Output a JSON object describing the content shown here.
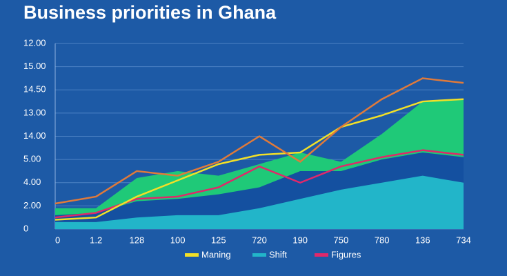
{
  "chart_data": {
    "type": "area",
    "title": "Business priorities in Ghana",
    "categories": [
      "0",
      "1.2",
      "128",
      "100",
      "125",
      "720",
      "190",
      "750",
      "780",
      "136",
      "734"
    ],
    "ylim": [
      0,
      8
    ],
    "yticks": [
      0,
      {
        "value": 1,
        "label": "2.00"
      },
      {
        "value": 2,
        "label": "4.00"
      },
      {
        "value": 3,
        "label": "5.00"
      },
      {
        "value": 4,
        "label": "14.00"
      },
      {
        "value": 5,
        "label": "13.00"
      },
      {
        "value": 6,
        "label": "14.50"
      },
      {
        "value": 7,
        "label": "15.00"
      },
      {
        "value": 8,
        "label": "12.00"
      }
    ],
    "grid": true,
    "series": [
      {
        "color": "#1fc978",
        "kind": "area",
        "values": [
          0.9,
          0.9,
          2.2,
          2.5,
          2.3,
          2.8,
          3.3,
          2.9,
          4.1,
          5.5,
          5.6
        ]
      },
      {
        "color": "#1450a0",
        "kind": "area",
        "values": [
          0.6,
          0.7,
          1.2,
          1.3,
          1.5,
          1.8,
          2.5,
          2.5,
          3.0,
          3.3,
          3.1
        ]
      },
      {
        "name": "Shift",
        "color": "#22b5c9",
        "kind": "area",
        "values": [
          0.3,
          0.3,
          0.5,
          0.6,
          0.6,
          0.9,
          1.3,
          1.7,
          2.0,
          2.3,
          2.0
        ]
      },
      {
        "name": "Figures",
        "color": "#e0286a",
        "kind": "line",
        "values": [
          0.5,
          0.7,
          1.3,
          1.4,
          1.8,
          2.7,
          2.0,
          2.7,
          3.1,
          3.4,
          3.2
        ]
      },
      {
        "name": "Maning",
        "color": "#f2e027",
        "kind": "line",
        "values": [
          0.4,
          0.5,
          1.4,
          2.1,
          2.8,
          3.2,
          3.3,
          4.4,
          4.9,
          5.5,
          5.6
        ]
      },
      {
        "color": "#e07a3a",
        "kind": "line",
        "values": [
          1.1,
          1.4,
          2.5,
          2.3,
          2.9,
          4.0,
          2.9,
          4.4,
          5.6,
          6.5,
          6.3
        ]
      }
    ],
    "legend": "bottom"
  }
}
